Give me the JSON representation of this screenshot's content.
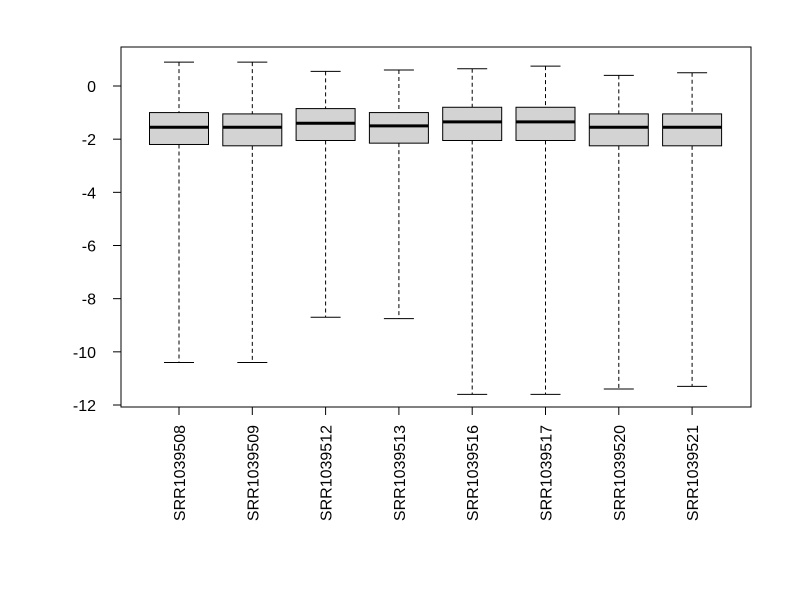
{
  "chart_data": {
    "type": "box",
    "title": "",
    "xlabel": "",
    "ylabel": "",
    "ylim": [
      -12.2,
      1.5
    ],
    "y_ticks": [
      0,
      -2,
      -4,
      -6,
      -8,
      -10,
      -12
    ],
    "y_tick_labels": [
      "0",
      "-2",
      "-4",
      "-6",
      "-8",
      "-10",
      "-12"
    ],
    "categories": [
      "SRR1039508",
      "SRR1039509",
      "SRR1039512",
      "SRR1039513",
      "SRR1039516",
      "SRR1039517",
      "SRR1039520",
      "SRR1039521"
    ],
    "boxes": [
      {
        "whisker_low": -10.4,
        "q1": -2.2,
        "median": -1.55,
        "q3": -1.0,
        "whisker_high": 0.9
      },
      {
        "whisker_low": -10.4,
        "q1": -2.25,
        "median": -1.55,
        "q3": -1.05,
        "whisker_high": 0.9
      },
      {
        "whisker_low": -8.7,
        "q1": -2.05,
        "median": -1.4,
        "q3": -0.85,
        "whisker_high": 0.55
      },
      {
        "whisker_low": -8.75,
        "q1": -2.15,
        "median": -1.5,
        "q3": -1.0,
        "whisker_high": 0.6
      },
      {
        "whisker_low": -11.6,
        "q1": -2.05,
        "median": -1.35,
        "q3": -0.8,
        "whisker_high": 0.65
      },
      {
        "whisker_low": -11.6,
        "q1": -2.05,
        "median": -1.35,
        "q3": -0.8,
        "whisker_high": 0.75
      },
      {
        "whisker_low": -11.4,
        "q1": -2.25,
        "median": -1.55,
        "q3": -1.05,
        "whisker_high": 0.4
      },
      {
        "whisker_low": -11.3,
        "q1": -2.25,
        "median": -1.55,
        "q3": -1.05,
        "whisker_high": 0.5
      }
    ],
    "box_fill": "#d3d3d3",
    "line_color": "#000000",
    "grid": false
  }
}
